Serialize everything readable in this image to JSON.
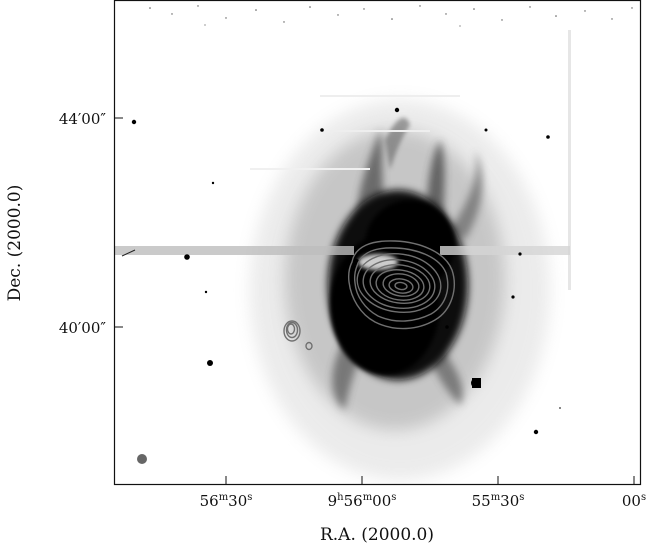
{
  "image": {
    "description_free": true,
    "colormap": "inverted grayscale (dark = bright emission)",
    "contour_color": "#6e6e6e",
    "frame_color": "#111111",
    "beam_color": "#666666"
  },
  "axes": {
    "x": {
      "label": "R.A. (2000.0)",
      "ticks": [
        {
          "label": "56m30s",
          "parts": [
            "56",
            "m",
            "30",
            "s"
          ]
        },
        {
          "label": "9h56m00s",
          "parts": [
            "9",
            "h",
            "56",
            "m",
            "00",
            "s"
          ]
        },
        {
          "label": "55m30s",
          "parts": [
            "55",
            "m",
            "30",
            "s"
          ]
        },
        {
          "label": "00s",
          "parts": [
            "00",
            "s"
          ]
        }
      ]
    },
    "y": {
      "label": "Dec. (2000.0)",
      "ticks": [
        {
          "label": "44′00″"
        },
        {
          "label": "40′00″"
        }
      ]
    }
  }
}
